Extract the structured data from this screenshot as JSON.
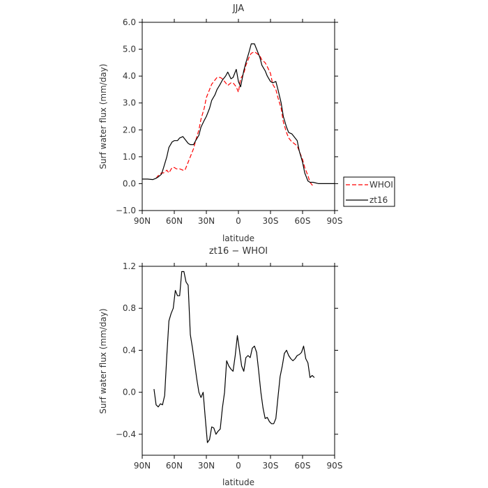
{
  "chart_data": [
    {
      "type": "line",
      "title": "JJA",
      "xlabel": "latitude",
      "ylabel": "Surf water flux (mm/day)",
      "xlim": [
        -90,
        90
      ],
      "ylim": [
        -1.0,
        6.0
      ],
      "x_ticks": [
        -90,
        -60,
        -30,
        0,
        30,
        60,
        90
      ],
      "x_tick_labels": [
        "90N",
        "60N",
        "30N",
        "0",
        "30S",
        "60S",
        "90S"
      ],
      "y_ticks": [
        -1.0,
        0.0,
        1.0,
        2.0,
        3.0,
        4.0,
        5.0,
        6.0
      ],
      "y_tick_labels": [
        "−1.0",
        "0.0",
        "1.0",
        "2.0",
        "3.0",
        "4.0",
        "5.0",
        "6.0"
      ],
      "legend_position": "right",
      "series": [
        {
          "name": "WHOI",
          "color": "#ff0000",
          "dash": "dashed",
          "x": [
            -77,
            -75,
            -72,
            -70,
            -67,
            -65,
            -62,
            -60,
            -58,
            -55,
            -52,
            -50,
            -47,
            -45,
            -42,
            -40,
            -37,
            -35,
            -32,
            -30,
            -27,
            -25,
            -22,
            -20,
            -17,
            -15,
            -12,
            -10,
            -7,
            -5,
            -2,
            0,
            2,
            5,
            7,
            10,
            12,
            15,
            17,
            20,
            22,
            25,
            27,
            30,
            32,
            35,
            37,
            40,
            42,
            45,
            47,
            50,
            52,
            55,
            57,
            60,
            62,
            65,
            67,
            70
          ],
          "y": [
            0.2,
            0.3,
            0.4,
            0.4,
            0.5,
            0.4,
            0.6,
            0.6,
            0.55,
            0.55,
            0.5,
            0.5,
            0.8,
            1.0,
            1.3,
            1.6,
            2.0,
            2.4,
            2.8,
            3.2,
            3.5,
            3.7,
            3.85,
            3.95,
            3.95,
            3.9,
            3.75,
            3.65,
            3.75,
            3.75,
            3.6,
            3.4,
            3.9,
            4.1,
            4.4,
            4.7,
            4.85,
            4.9,
            4.85,
            4.75,
            4.6,
            4.5,
            4.35,
            4.1,
            3.7,
            3.5,
            3.2,
            2.8,
            2.3,
            1.9,
            1.7,
            1.55,
            1.5,
            1.4,
            1.2,
            0.9,
            0.6,
            0.3,
            0.05,
            -0.1
          ]
        },
        {
          "name": "zt16",
          "color": "#000000",
          "dash": "solid",
          "x": [
            -90,
            -85,
            -80,
            -77,
            -75,
            -72,
            -70,
            -67,
            -65,
            -62,
            -60,
            -57,
            -55,
            -52,
            -50,
            -47,
            -45,
            -42,
            -40,
            -37,
            -35,
            -32,
            -30,
            -27,
            -25,
            -22,
            -20,
            -17,
            -15,
            -12,
            -10,
            -7,
            -5,
            -2,
            0,
            2,
            5,
            7,
            10,
            12,
            15,
            17,
            20,
            22,
            25,
            27,
            30,
            32,
            35,
            37,
            40,
            42,
            45,
            47,
            50,
            52,
            55,
            57,
            60,
            62,
            65,
            67,
            70,
            75,
            80,
            85,
            90
          ],
          "y": [
            0.17,
            0.17,
            0.15,
            0.2,
            0.25,
            0.35,
            0.6,
            1.0,
            1.35,
            1.55,
            1.6,
            1.6,
            1.7,
            1.75,
            1.65,
            1.5,
            1.45,
            1.45,
            1.6,
            1.8,
            2.1,
            2.35,
            2.5,
            2.8,
            3.1,
            3.3,
            3.5,
            3.7,
            3.85,
            4.0,
            4.15,
            3.9,
            3.95,
            4.25,
            3.8,
            3.6,
            4.2,
            4.5,
            4.9,
            5.2,
            5.2,
            5.0,
            4.7,
            4.4,
            4.2,
            4.0,
            3.8,
            3.75,
            3.8,
            3.5,
            3.0,
            2.5,
            2.1,
            1.9,
            1.85,
            1.75,
            1.6,
            1.2,
            0.8,
            0.4,
            0.1,
            0.05,
            0.05,
            0.0,
            0.0,
            0.0,
            0.0
          ]
        }
      ]
    },
    {
      "type": "line",
      "title": "zt16 − WHOI",
      "xlabel": "latitude",
      "ylabel": "Surf water flux (mm/day)",
      "xlim": [
        -90,
        90
      ],
      "ylim": [
        -0.6,
        1.2
      ],
      "x_ticks": [
        -90,
        -60,
        -30,
        0,
        30,
        60,
        90
      ],
      "x_tick_labels": [
        "90N",
        "60N",
        "30N",
        "0",
        "30S",
        "60S",
        "90S"
      ],
      "y_ticks": [
        -0.4,
        0.0,
        0.4,
        0.8,
        1.2
      ],
      "y_tick_labels": [
        "−0.4",
        "0.0",
        "0.4",
        "0.8",
        "1.2"
      ],
      "series": [
        {
          "color": "#000000",
          "dash": "solid",
          "x": [
            -79,
            -77,
            -75,
            -73,
            -71,
            -69,
            -67,
            -65,
            -63,
            -61,
            -59,
            -57,
            -55,
            -53,
            -51,
            -49,
            -47,
            -45,
            -43,
            -41,
            -39,
            -37,
            -35,
            -33,
            -31,
            -29,
            -27,
            -25,
            -23,
            -21,
            -19,
            -17,
            -15,
            -13,
            -11,
            -9,
            -7,
            -5,
            -3,
            -1,
            1,
            3,
            5,
            7,
            9,
            11,
            13,
            15,
            17,
            19,
            21,
            23,
            25,
            27,
            29,
            31,
            33,
            35,
            37,
            39,
            41,
            43,
            45,
            47,
            49,
            51,
            53,
            55,
            57,
            59,
            61,
            63,
            65,
            67,
            69,
            71
          ],
          "y": [
            0.03,
            -0.12,
            -0.14,
            -0.11,
            -0.12,
            -0.03,
            0.35,
            0.68,
            0.75,
            0.8,
            0.97,
            0.92,
            0.92,
            1.15,
            1.15,
            1.05,
            1.02,
            0.55,
            0.42,
            0.28,
            0.13,
            0.0,
            -0.05,
            0.0,
            -0.25,
            -0.48,
            -0.45,
            -0.33,
            -0.34,
            -0.4,
            -0.37,
            -0.35,
            -0.15,
            0.0,
            0.3,
            0.25,
            0.22,
            0.2,
            0.35,
            0.54,
            0.4,
            0.25,
            0.2,
            0.33,
            0.35,
            0.33,
            0.42,
            0.44,
            0.38,
            0.2,
            0.0,
            -0.15,
            -0.25,
            -0.24,
            -0.28,
            -0.3,
            -0.3,
            -0.25,
            -0.05,
            0.15,
            0.25,
            0.37,
            0.4,
            0.35,
            0.32,
            0.3,
            0.32,
            0.35,
            0.36,
            0.38,
            0.44,
            0.32,
            0.28,
            0.14,
            0.16,
            0.14
          ]
        }
      ]
    }
  ]
}
